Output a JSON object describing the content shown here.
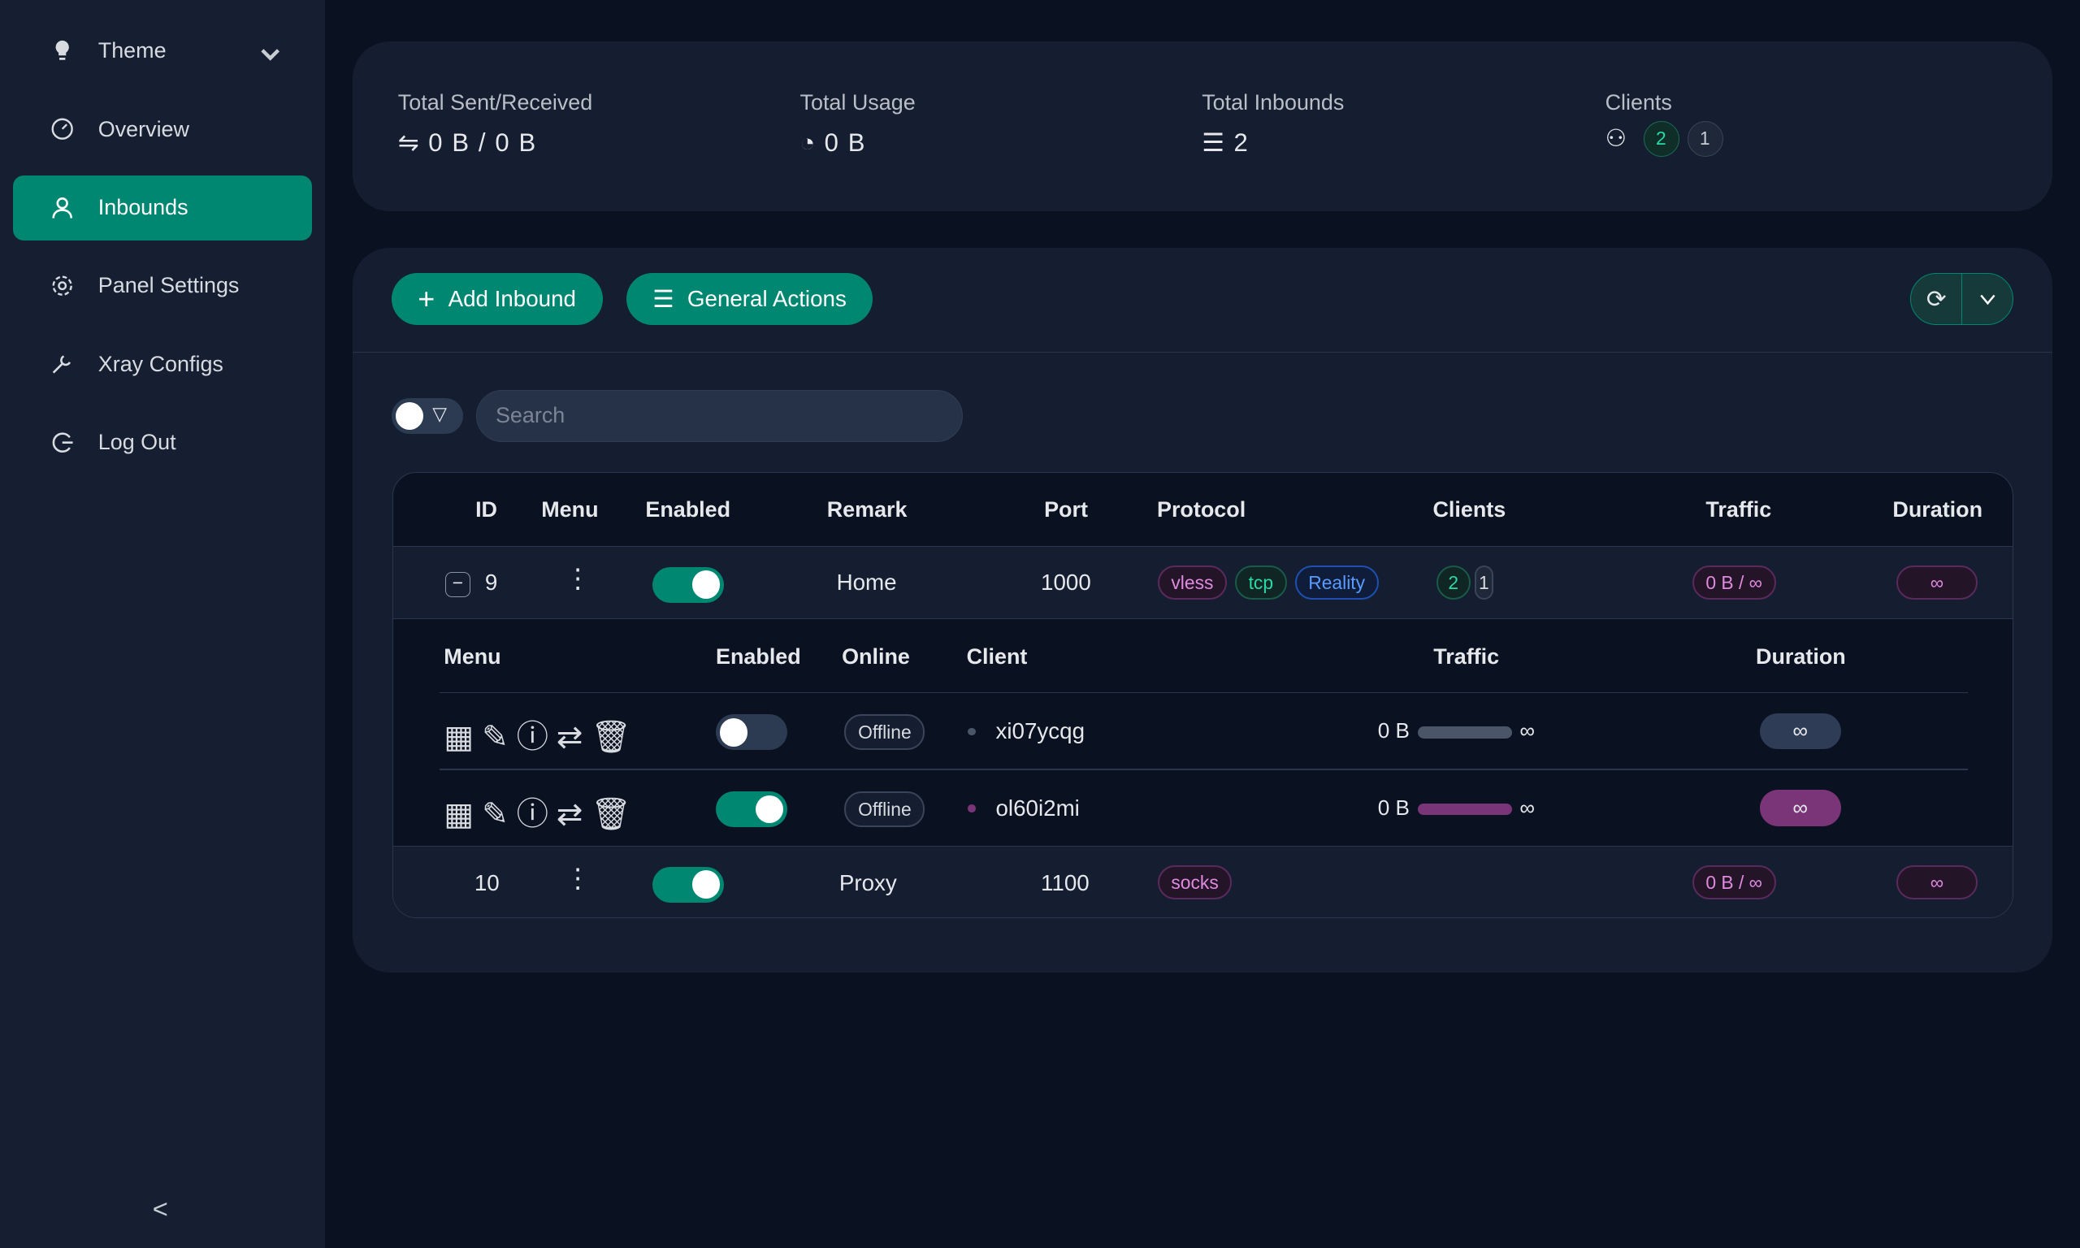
{
  "sidebar": {
    "items": [
      {
        "label": "Theme",
        "icon": "lightbulb-icon"
      },
      {
        "label": "Overview",
        "icon": "dashboard-icon"
      },
      {
        "label": "Inbounds",
        "icon": "user-icon",
        "active": true
      },
      {
        "label": "Panel Settings",
        "icon": "gear-icon"
      },
      {
        "label": "Xray Configs",
        "icon": "tool-icon"
      },
      {
        "label": "Log Out",
        "icon": "logout-icon"
      }
    ],
    "collapse": "<"
  },
  "stats": {
    "sent_received": {
      "label": "Total Sent/Received",
      "value": "0 B / 0 B"
    },
    "usage": {
      "label": "Total Usage",
      "value": "0 B"
    },
    "inbounds": {
      "label": "Total Inbounds",
      "value": "2"
    },
    "clients": {
      "label": "Clients",
      "active": "2",
      "other": "1"
    }
  },
  "toolbar": {
    "add": "Add Inbound",
    "general": "General Actions"
  },
  "search": {
    "placeholder": "Search",
    "value": ""
  },
  "columns": [
    "ID",
    "Menu",
    "Enabled",
    "Remark",
    "Port",
    "Protocol",
    "Clients",
    "Traffic",
    "Duration"
  ],
  "inbounds": [
    {
      "id": "9",
      "enabled": true,
      "remark": "Home",
      "port": "1000",
      "protocols": [
        "vless",
        "tcp",
        "Reality"
      ],
      "clients_active": "2",
      "clients_other": "1",
      "traffic": "0 B / ∞",
      "duration": "∞",
      "expanded": true
    },
    {
      "id": "10",
      "enabled": true,
      "remark": "Proxy",
      "port": "1100",
      "protocols": [
        "socks"
      ],
      "traffic": "0 B / ∞",
      "duration": "∞"
    }
  ],
  "client_columns": [
    "Menu",
    "Enabled",
    "Online",
    "Client",
    "Traffic",
    "Duration"
  ],
  "clients": [
    {
      "enabled": false,
      "online": "Offline",
      "name": "xi07ycqg",
      "traffic": "0 B",
      "limit": "∞",
      "duration": "∞"
    },
    {
      "enabled": true,
      "online": "Offline",
      "name": "ol60i2mi",
      "traffic": "0 B",
      "limit": "∞",
      "duration": "∞"
    }
  ],
  "colors": {
    "accent": "#008771",
    "vless": "#b06ab3",
    "tcp": "#2bb99a",
    "reality": "#4a8eff",
    "client_active": "#7a3578"
  }
}
